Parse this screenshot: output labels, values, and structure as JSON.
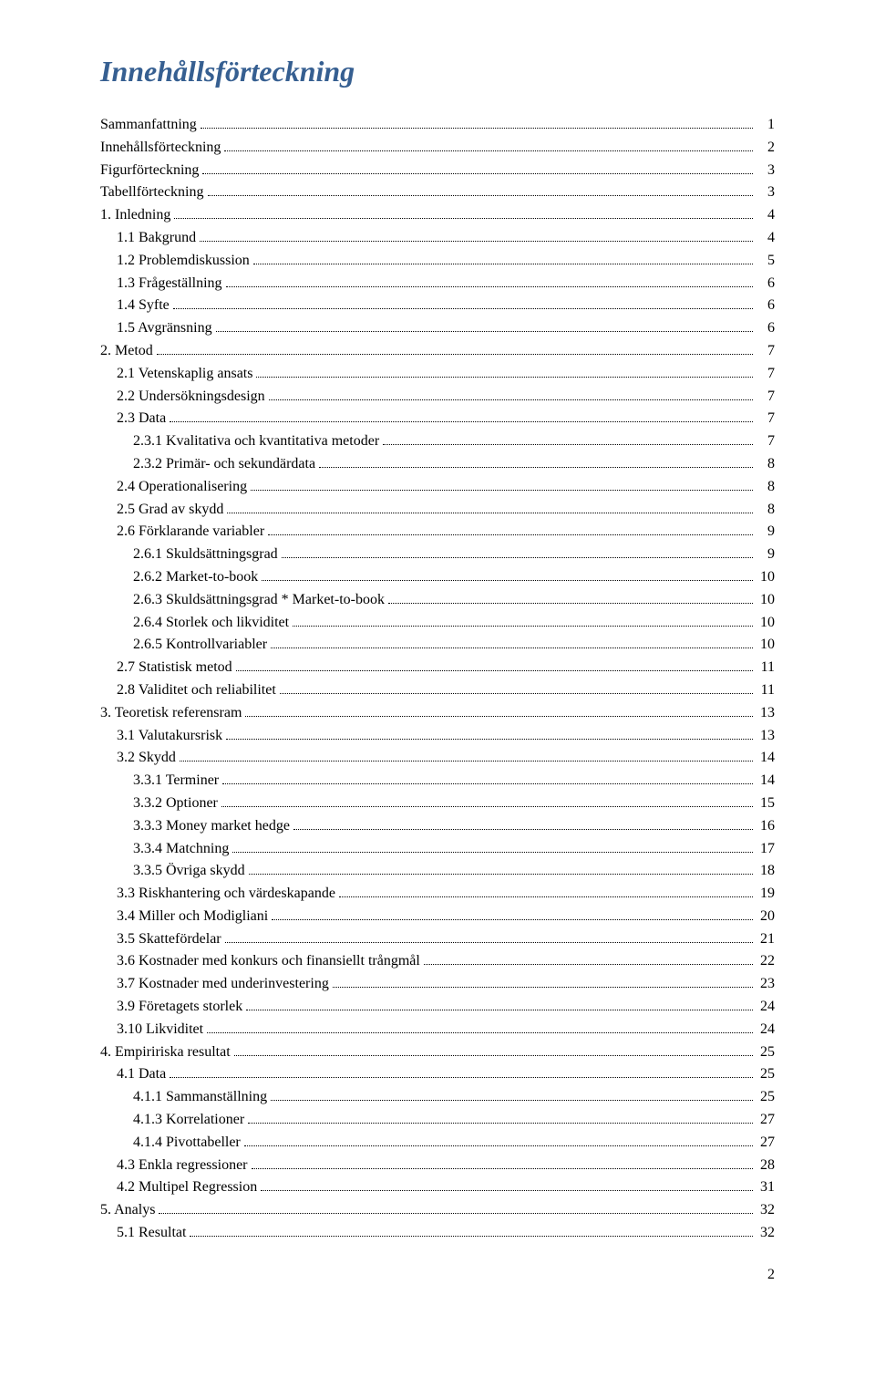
{
  "title": "Innehållsförteckning",
  "page_number": "2",
  "styling": {
    "title_color": "#365f91",
    "title_fontsize": 32,
    "title_fontweight": "bold",
    "title_fontstyle": "italic",
    "body_fontsize": 16,
    "body_color": "#000000",
    "background": "#ffffff",
    "font_family": "Times New Roman"
  },
  "toc": [
    {
      "label": "Sammanfattning",
      "page": "1",
      "level": 0
    },
    {
      "label": "Innehållsförteckning",
      "page": "2",
      "level": 0
    },
    {
      "label": "Figurförteckning",
      "page": "3",
      "level": 0
    },
    {
      "label": "Tabellförteckning",
      "page": "3",
      "level": 0
    },
    {
      "label": "1. Inledning",
      "page": "4",
      "level": 0
    },
    {
      "label": "1.1 Bakgrund",
      "page": "4",
      "level": 1
    },
    {
      "label": "1.2 Problemdiskussion",
      "page": "5",
      "level": 1
    },
    {
      "label": "1.3 Frågeställning",
      "page": "6",
      "level": 1
    },
    {
      "label": "1.4 Syfte",
      "page": "6",
      "level": 1
    },
    {
      "label": "1.5 Avgränsning",
      "page": "6",
      "level": 1
    },
    {
      "label": "2. Metod",
      "page": "7",
      "level": 0
    },
    {
      "label": "2.1 Vetenskaplig ansats",
      "page": "7",
      "level": 1
    },
    {
      "label": "2.2 Undersökningsdesign",
      "page": "7",
      "level": 1
    },
    {
      "label": "2.3 Data",
      "page": "7",
      "level": 1
    },
    {
      "label": "2.3.1 Kvalitativa och kvantitativa metoder",
      "page": "7",
      "level": 2
    },
    {
      "label": "2.3.2 Primär- och sekundärdata",
      "page": "8",
      "level": 2
    },
    {
      "label": "2.4 Operationalisering",
      "page": "8",
      "level": 1
    },
    {
      "label": "2.5 Grad av skydd",
      "page": "8",
      "level": 1
    },
    {
      "label": "2.6 Förklarande variabler",
      "page": "9",
      "level": 1
    },
    {
      "label": "2.6.1 Skuldsättningsgrad",
      "page": "9",
      "level": 2
    },
    {
      "label": "2.6.2 Market-to-book",
      "page": "10",
      "level": 2
    },
    {
      "label": "2.6.3 Skuldsättningsgrad * Market-to-book",
      "page": "10",
      "level": 2
    },
    {
      "label": "2.6.4 Storlek och likviditet",
      "page": "10",
      "level": 2
    },
    {
      "label": "2.6.5 Kontrollvariabler",
      "page": "10",
      "level": 2
    },
    {
      "label": "2.7 Statistisk metod",
      "page": "11",
      "level": 1
    },
    {
      "label": "2.8 Validitet och reliabilitet",
      "page": "11",
      "level": 1
    },
    {
      "label": "3. Teoretisk referensram",
      "page": "13",
      "level": 0
    },
    {
      "label": "3.1 Valutakursrisk",
      "page": "13",
      "level": 1
    },
    {
      "label": "3.2 Skydd",
      "page": "14",
      "level": 1
    },
    {
      "label": "3.3.1 Terminer",
      "page": "14",
      "level": 2
    },
    {
      "label": "3.3.2 Optioner",
      "page": "15",
      "level": 2
    },
    {
      "label": "3.3.3 Money market hedge",
      "page": "16",
      "level": 2
    },
    {
      "label": "3.3.4 Matchning",
      "page": "17",
      "level": 2
    },
    {
      "label": "3.3.5 Övriga skydd",
      "page": "18",
      "level": 2
    },
    {
      "label": "3.3 Riskhantering och värdeskapande",
      "page": "19",
      "level": 1
    },
    {
      "label": "3.4 Miller och Modigliani",
      "page": "20",
      "level": 1
    },
    {
      "label": "3.5 Skattefördelar",
      "page": "21",
      "level": 1
    },
    {
      "label": "3.6 Kostnader med konkurs och finansiellt trångmål",
      "page": "22",
      "level": 1
    },
    {
      "label": "3.7 Kostnader med underinvestering",
      "page": "23",
      "level": 1
    },
    {
      "label": "3.9 Företagets storlek",
      "page": "24",
      "level": 1
    },
    {
      "label": "3.10 Likviditet",
      "page": "24",
      "level": 1
    },
    {
      "label": "4. Empiririska resultat",
      "page": "25",
      "level": 0
    },
    {
      "label": "4.1 Data",
      "page": "25",
      "level": 1
    },
    {
      "label": "4.1.1 Sammanställning",
      "page": "25",
      "level": 2
    },
    {
      "label": "4.1.3 Korrelationer",
      "page": "27",
      "level": 2
    },
    {
      "label": "4.1.4 Pivottabeller",
      "page": "27",
      "level": 2
    },
    {
      "label": "4.3 Enkla regressioner",
      "page": "28",
      "level": 1
    },
    {
      "label": "4.2 Multipel Regression",
      "page": "31",
      "level": 1
    },
    {
      "label": "5. Analys",
      "page": "32",
      "level": 0
    },
    {
      "label": "5.1 Resultat",
      "page": "32",
      "level": 1
    }
  ]
}
